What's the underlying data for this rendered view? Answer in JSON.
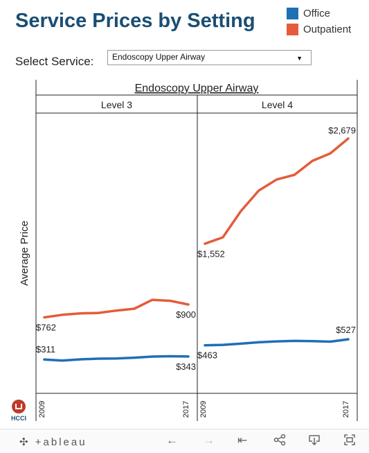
{
  "header": {
    "title": "Service Prices by Setting"
  },
  "legend": [
    {
      "label": "Office",
      "color": "#1f6fb5"
    },
    {
      "label": "Outpatient",
      "color": "#e45c3a"
    }
  ],
  "filter": {
    "label": "Select Service:",
    "value": "Endoscopy Upper Airway"
  },
  "chart_data": {
    "type": "line",
    "title": "Endoscopy Upper Airway",
    "ylabel": "Average Price",
    "x": [
      2009,
      2010,
      2011,
      2012,
      2013,
      2014,
      2015,
      2016,
      2017
    ],
    "xtick_labels": [
      "2009",
      "2017"
    ],
    "ylim": [
      0,
      2900
    ],
    "panels": [
      {
        "name": "Level 3",
        "series": [
          {
            "name": "Office",
            "values": [
              311,
              300,
              312,
              320,
              322,
              330,
              342,
              346,
              343
            ],
            "labels": {
              "start": "$311",
              "end": "$343"
            }
          },
          {
            "name": "Outpatient",
            "values": [
              762,
              790,
              805,
              810,
              835,
              855,
              950,
              940,
              900
            ],
            "labels": {
              "start": "$762",
              "end": "$900"
            }
          }
        ]
      },
      {
        "name": "Level 4",
        "series": [
          {
            "name": "Office",
            "values": [
              463,
              468,
              480,
              495,
              505,
              510,
              508,
              502,
              527
            ],
            "labels": {
              "start": "$463",
              "end": "$527"
            }
          },
          {
            "name": "Outpatient",
            "values": [
              1552,
              1620,
              1900,
              2120,
              2240,
              2290,
              2440,
              2520,
              2679
            ],
            "labels": {
              "start": "$1,552",
              "end": "$2,679"
            }
          }
        ]
      }
    ],
    "colors": {
      "Office": "#1f6fb5",
      "Outpatient": "#e45c3a"
    },
    "grid": false
  },
  "branding": {
    "org": "HCCI"
  },
  "toolbar": {
    "logo": "+ableau",
    "undo": "←",
    "redo": "→",
    "revert": "⇤",
    "share": "share",
    "download": "download",
    "fullscreen": "fullscreen"
  }
}
